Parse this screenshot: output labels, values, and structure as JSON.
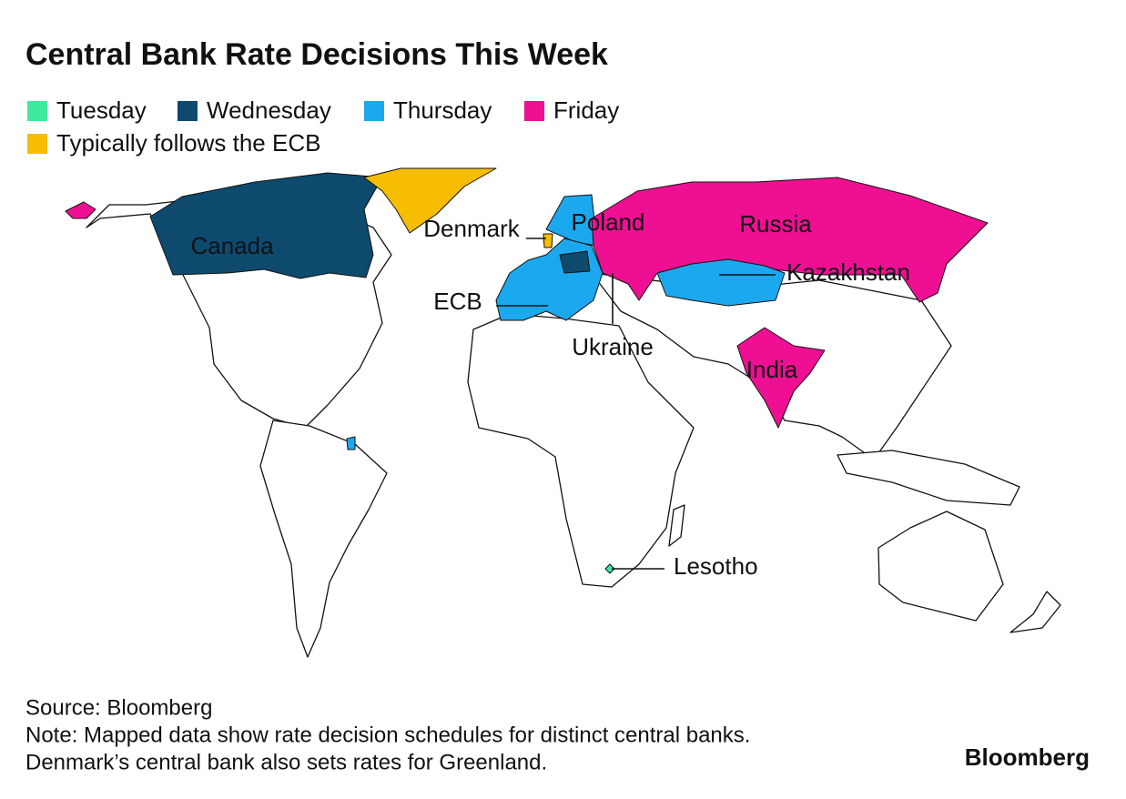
{
  "title": "Central Bank Rate Decisions This Week",
  "legend": [
    {
      "label": "Tuesday",
      "color": "#3ee89e"
    },
    {
      "label": "Wednesday",
      "color": "#0d4a6e"
    },
    {
      "label": "Thursday",
      "color": "#1ca8ee"
    },
    {
      "label": "Friday",
      "color": "#ee0f93"
    },
    {
      "label": "Typically follows the ECB",
      "color": "#f7bd00"
    }
  ],
  "map_labels": [
    "Canada",
    "Denmark",
    "Poland",
    "Russia",
    "Kazakhstan",
    "ECB",
    "Ukraine",
    "India",
    "Lesotho"
  ],
  "footer": {
    "source": "Source: Bloomberg",
    "notes": [
      "Note: Mapped data show rate decision schedules for distinct central banks.",
      "Denmark’s central bank also sets rates for Greenland."
    ],
    "brand": "Bloomberg"
  }
}
